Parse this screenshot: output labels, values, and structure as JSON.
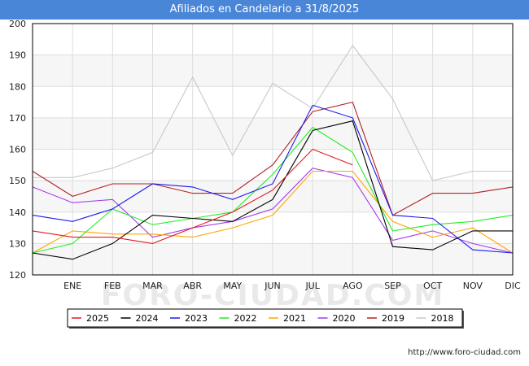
{
  "title": "Afiliados en Candelario a 31/8/2025",
  "footer_url": "http://www.foro-ciudad.com",
  "watermark": "FORO-CIUDAD.COM",
  "chart_data": {
    "type": "line",
    "title": "Afiliados en Candelario a 31/8/2025",
    "xlabel": "",
    "ylabel": "",
    "categories": [
      "DIC",
      "ENE",
      "FEB",
      "MAR",
      "ABR",
      "MAY",
      "JUN",
      "JUL",
      "AGO",
      "SEP",
      "OCT",
      "NOV",
      "DIC"
    ],
    "x_tick_labels": [
      "",
      "ENE",
      "FEB",
      "MAR",
      "ABR",
      "MAY",
      "JUN",
      "JUL",
      "AGO",
      "SEP",
      "OCT",
      "NOV",
      "DIC"
    ],
    "ylim": [
      120,
      200
    ],
    "y_ticks": [
      120,
      130,
      140,
      150,
      160,
      170,
      180,
      190,
      200
    ],
    "grid": true,
    "legend_position": "bottom",
    "series": [
      {
        "name": "2025",
        "color": "#e8171c",
        "values": [
          134,
          132,
          132,
          130,
          135,
          140,
          147,
          160,
          155,
          null,
          null,
          null,
          null
        ]
      },
      {
        "name": "2024",
        "color": "#000000",
        "values": [
          127,
          125,
          130,
          139,
          138,
          137,
          144,
          166,
          169,
          129,
          128,
          134,
          134
        ]
      },
      {
        "name": "2023",
        "color": "#1a1aee",
        "values": [
          139,
          137,
          141,
          149,
          148,
          144,
          149,
          174,
          170,
          139,
          138,
          128,
          127
        ]
      },
      {
        "name": "2022",
        "color": "#22ee22",
        "values": [
          127,
          130,
          141,
          136,
          138,
          140,
          152,
          167,
          159,
          134,
          136,
          137,
          139
        ]
      },
      {
        "name": "2021",
        "color": "#ffa500",
        "values": [
          127,
          134,
          133,
          133,
          132,
          135,
          139,
          153,
          153,
          137,
          132,
          135,
          127
        ]
      },
      {
        "name": "2020",
        "color": "#a33bea",
        "values": [
          148,
          143,
          144,
          132,
          135,
          137,
          141,
          154,
          151,
          131,
          134,
          130,
          127
        ]
      },
      {
        "name": "2019",
        "color": "#b22222",
        "values": [
          153,
          145,
          149,
          149,
          146,
          146,
          155,
          172,
          175,
          139,
          146,
          146,
          148
        ]
      },
      {
        "name": "2018",
        "color": "#c8c8c8",
        "values": [
          151,
          151,
          154,
          159,
          183,
          158,
          181,
          173,
          193,
          176,
          150,
          153,
          153
        ]
      }
    ]
  }
}
